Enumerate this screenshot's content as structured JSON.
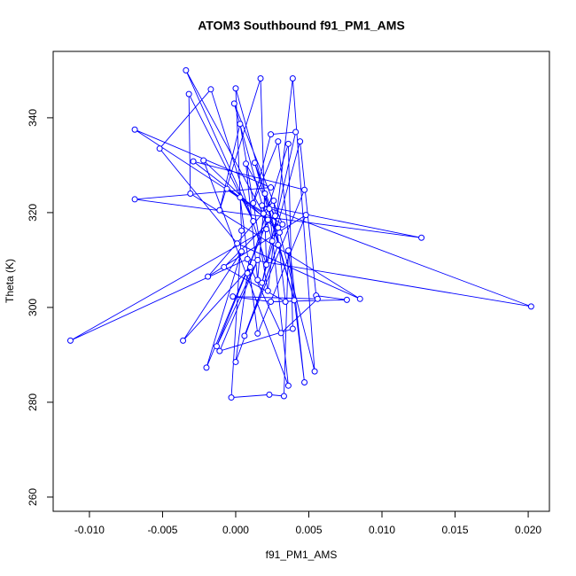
{
  "chart_data": {
    "type": "scatter",
    "connected": true,
    "title": "ATOM3 Southbound f91_PM1_AMS",
    "x_label": "f91_PM1_AMS",
    "y_label": "Theta (K)",
    "color": "#0000ff",
    "x": [
      0.0021,
      -0.0113,
      0.0008,
      0.0202,
      0.0018,
      0.0127,
      -0.0069,
      0.0024,
      -0.0069,
      0.0019,
      -0.0034,
      0.0012,
      -0.0032,
      -0.0031,
      0.0085,
      0.0001,
      -0.0052,
      -0.0017,
      0.0021,
      0.0017,
      -0.0011,
      0.0003,
      0.0022,
      0.0039,
      0.0054,
      0.003,
      -0.0022,
      0.0036,
      0.0023,
      0.0,
      0.0004,
      -0.0003,
      0.0023,
      0.0033,
      0.0036,
      0.0047,
      0.0029,
      0.0012,
      0.0024,
      0.0041,
      0.0018,
      0.0044,
      0.0055,
      0.0076,
      0.0024,
      -0.0002,
      0.0056,
      0.0031,
      0.001,
      -0.0036,
      0.0004,
      -0.002,
      0.0022,
      -0.0013,
      0.0015,
      -0.0011,
      0.0039,
      0.0036,
      0.0008,
      0.0,
      0.0029,
      0.0006,
      0.0047,
      -0.0029,
      0.0003,
      0.0015,
      0.0048,
      -0.0019,
      0.0026,
      0.0034,
      -0.0008,
      0.0027,
      0.0007,
      0.0015,
      0.002,
      0.004,
      0.0013,
      0.0029,
      -0.0006,
      0.0032,
      -0.0001,
      0.0025
    ],
    "values": [
      316.5,
      293.0,
      310.2,
      300.2,
      321.5,
      314.7,
      322.8,
      325.3,
      337.5,
      319.8,
      350.0,
      318.2,
      345.0,
      324.0,
      301.8,
      313.5,
      333.5,
      346.0,
      309.0,
      348.3,
      320.5,
      338.7,
      303.5,
      348.3,
      286.5,
      315.8,
      331.0,
      283.5,
      320.8,
      346.2,
      316.2,
      281.0,
      281.6,
      281.3,
      312.0,
      284.2,
      335.0,
      322.0,
      336.5,
      337.0,
      305.2,
      335.0,
      302.5,
      301.6,
      301.2,
      302.3,
      301.8,
      294.6,
      308.5,
      293.0,
      311.8,
      287.3,
      318.5,
      291.8,
      310.0,
      290.8,
      295.5,
      334.5,
      307.2,
      288.5,
      313.2,
      294.0,
      324.8,
      330.8,
      323.2,
      294.5,
      319.5,
      306.5,
      322.5,
      301.2,
      308.5,
      319.3,
      330.3,
      305.8,
      324.0,
      301.5,
      330.5,
      316.8,
      325.0,
      317.5,
      343.0,
      314.0
    ],
    "xlim": [
      -0.01248,
      0.02145
    ],
    "xticks": [
      {
        "value": -0.01,
        "label": "-0.010"
      },
      -0.005,
      {
        "value": 0,
        "label": "0.000"
      },
      0.005,
      {
        "value": 0.01,
        "label": "0.010"
      },
      0.015,
      {
        "value": 0.02,
        "label": "0.020"
      }
    ],
    "ylim": [
      257.0,
      354.0
    ],
    "yticks": [
      260,
      280,
      300,
      320,
      340
    ]
  }
}
